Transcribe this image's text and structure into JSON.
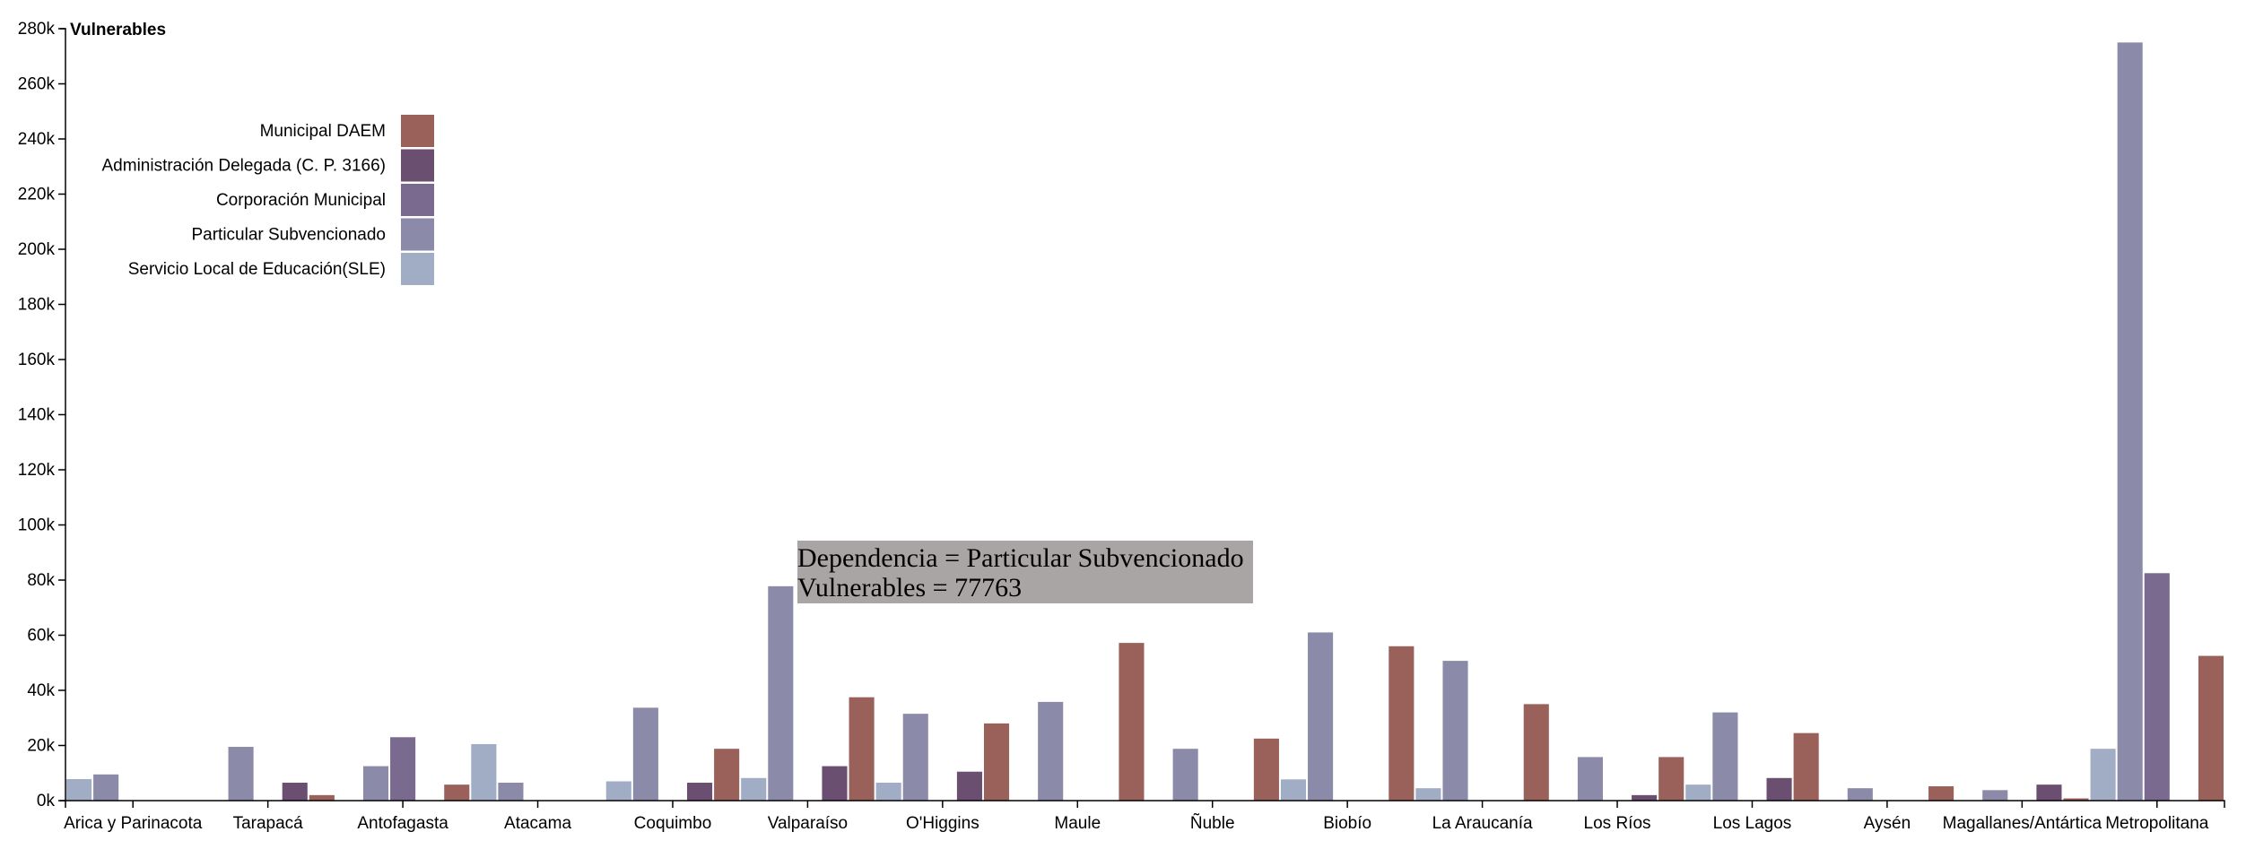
{
  "chart_data": {
    "type": "bar",
    "ylabel": "Vulnerables",
    "ylim": [
      0,
      280000
    ],
    "yticks": [
      0,
      20000,
      40000,
      60000,
      80000,
      100000,
      120000,
      140000,
      160000,
      180000,
      200000,
      220000,
      240000,
      260000,
      280000
    ],
    "ytick_labels": [
      "0k",
      "20k",
      "40k",
      "60k",
      "80k",
      "100k",
      "120k",
      "140k",
      "160k",
      "180k",
      "200k",
      "220k",
      "240k",
      "260k",
      "280k"
    ],
    "categories": [
      "Arica y Parinacota",
      "Tarapacá",
      "Antofagasta",
      "Atacama",
      "Coquimbo",
      "Valparaíso",
      "O'Higgins",
      "Maule",
      "Ñuble",
      "Biobío",
      "La Araucanía",
      "Los Ríos",
      "Los Lagos",
      "Aysén",
      "Magallanes/Antártica",
      "Metropolitana"
    ],
    "legend_position": "top-left",
    "series": [
      {
        "name": "Servicio Local de Educación(SLE)",
        "color": "#a0adc5",
        "values": [
          7800,
          0,
          0,
          20500,
          7000,
          8200,
          6500,
          0,
          0,
          7700,
          4500,
          0,
          5800,
          0,
          0,
          18800
        ]
      },
      {
        "name": "Particular Subvencionado",
        "color": "#8b8aa8",
        "values": [
          9500,
          19500,
          12500,
          6500,
          33700,
          77763,
          31500,
          35800,
          18800,
          61000,
          50700,
          15800,
          32000,
          4500,
          3800,
          275000
        ]
      },
      {
        "name": "Corporación Municipal",
        "color": "#7a6a8f",
        "values": [
          0,
          0,
          23000,
          0,
          0,
          0,
          0,
          0,
          0,
          0,
          0,
          0,
          0,
          0,
          0,
          82500
        ]
      },
      {
        "name": "Administración Delegada (C. P. 3166)",
        "color": "#6b4f70",
        "values": [
          0,
          6500,
          0,
          0,
          6500,
          12500,
          10500,
          0,
          0,
          0,
          0,
          2000,
          8200,
          0,
          5800,
          0
        ]
      },
      {
        "name": "Municipal DAEM",
        "color": "#9a615a",
        "values": [
          0,
          2000,
          5800,
          0,
          18800,
          37500,
          28000,
          57200,
          22500,
          56000,
          35000,
          15800,
          24500,
          5200,
          800,
          52500
        ]
      }
    ],
    "legend_order": [
      "Municipal DAEM",
      "Administración Delegada (C. P. 3166)",
      "Corporación Municipal",
      "Particular Subvencionado",
      "Servicio Local de Educación(SLE)"
    ],
    "tooltip": {
      "line1": "Dependencia = Particular Subvencionado",
      "line2": "Vulnerables = 77763",
      "category": "Valparaíso"
    }
  }
}
